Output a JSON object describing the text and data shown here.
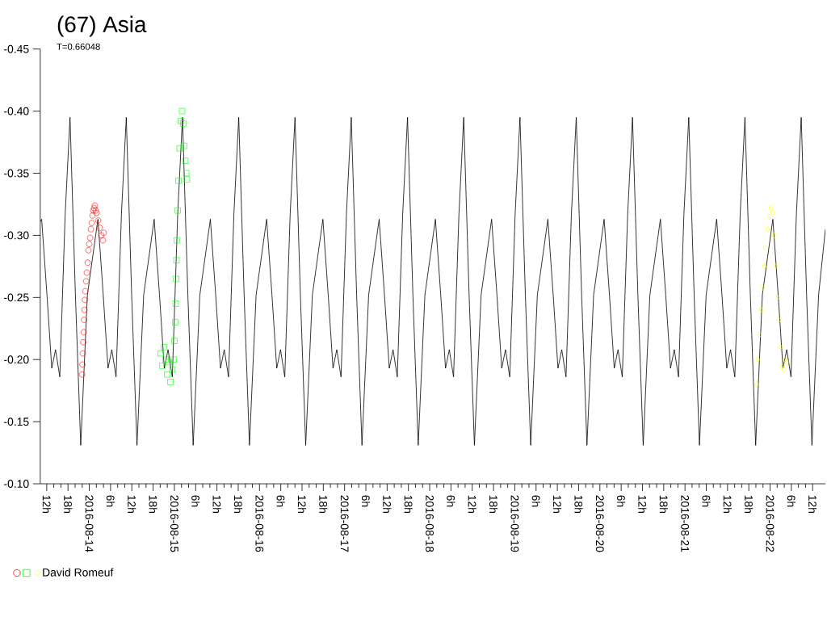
{
  "chart_data": {
    "type": "line",
    "title": "(67) Asia",
    "subtitle": "T=0.66048",
    "legend": "bottom left",
    "xlim": [
      "2016-08-13T10:10",
      "2016-08-22T15:36"
    ],
    "ylim": [
      -0.1,
      -0.45
    ],
    "yticks": [
      {
        "value": -0.45,
        "label": "-0.45"
      },
      {
        "value": -0.4,
        "label": "-0.40"
      },
      {
        "value": -0.35,
        "label": "-0.35"
      },
      {
        "value": -0.3,
        "label": "-0.30"
      },
      {
        "value": -0.25,
        "label": "-0.25"
      },
      {
        "value": -0.2,
        "label": "-0.20"
      },
      {
        "value": -0.15,
        "label": "-0.15"
      },
      {
        "value": -0.1,
        "label": "-0.10"
      }
    ],
    "xticks": [
      {
        "value": "2016-08-13T12:00",
        "label": "12h"
      },
      {
        "value": "2016-08-13T18:00",
        "label": "18h"
      },
      {
        "value": "2016-08-14T00:00",
        "label": "2016-08-14"
      },
      {
        "value": "2016-08-14T06:00",
        "label": "6h"
      },
      {
        "value": "2016-08-14T12:00",
        "label": "12h"
      },
      {
        "value": "2016-08-14T18:00",
        "label": "18h"
      },
      {
        "value": "2016-08-15T00:00",
        "label": "2016-08-15"
      },
      {
        "value": "2016-08-15T06:00",
        "label": "6h"
      },
      {
        "value": "2016-08-15T12:00",
        "label": "12h"
      },
      {
        "value": "2016-08-15T18:00",
        "label": "18h"
      },
      {
        "value": "2016-08-16T00:00",
        "label": "2016-08-16"
      },
      {
        "value": "2016-08-16T06:00",
        "label": "6h"
      },
      {
        "value": "2016-08-16T12:00",
        "label": "12h"
      },
      {
        "value": "2016-08-16T18:00",
        "label": "18h"
      },
      {
        "value": "2016-08-17T00:00",
        "label": "2016-08-17"
      },
      {
        "value": "2016-08-17T06:00",
        "label": "6h"
      },
      {
        "value": "2016-08-17T12:00",
        "label": "12h"
      },
      {
        "value": "2016-08-17T18:00",
        "label": "18h"
      },
      {
        "value": "2016-08-18T00:00",
        "label": "2016-08-18"
      },
      {
        "value": "2016-08-18T06:00",
        "label": "6h"
      },
      {
        "value": "2016-08-18T12:00",
        "label": "12h"
      },
      {
        "value": "2016-08-18T18:00",
        "label": "18h"
      },
      {
        "value": "2016-08-19T00:00",
        "label": "2016-08-19"
      },
      {
        "value": "2016-08-19T06:00",
        "label": "6h"
      },
      {
        "value": "2016-08-19T12:00",
        "label": "12h"
      },
      {
        "value": "2016-08-19T18:00",
        "label": "18h"
      },
      {
        "value": "2016-08-20T00:00",
        "label": "2016-08-20"
      },
      {
        "value": "2016-08-20T06:00",
        "label": "6h"
      },
      {
        "value": "2016-08-20T12:00",
        "label": "12h"
      },
      {
        "value": "2016-08-20T18:00",
        "label": "18h"
      },
      {
        "value": "2016-08-21T00:00",
        "label": "2016-08-21"
      },
      {
        "value": "2016-08-21T06:00",
        "label": "6h"
      },
      {
        "value": "2016-08-21T12:00",
        "label": "12h"
      },
      {
        "value": "2016-08-21T18:00",
        "label": "18h"
      },
      {
        "value": "2016-08-22T00:00",
        "label": "2016-08-22"
      },
      {
        "value": "2016-08-22T06:00",
        "label": "6h"
      },
      {
        "value": "2016-08-22T12:00",
        "label": "12h"
      }
    ],
    "series": [
      {
        "type": "scatter",
        "marker": "circle",
        "color": "#ff0000",
        "x": [
          "2016-08-13T21:58",
          "2016-08-13T22:04",
          "2016-08-13T22:11",
          "2016-08-13T22:18",
          "2016-08-13T22:25",
          "2016-08-13T22:32",
          "2016-08-13T22:38",
          "2016-08-13T22:45",
          "2016-08-13T22:52",
          "2016-08-13T23:06",
          "2016-08-13T23:19",
          "2016-08-13T23:33",
          "2016-08-13T23:46",
          "2016-08-14T00:00",
          "2016-08-14T00:14",
          "2016-08-14T00:27",
          "2016-08-14T00:41",
          "2016-08-14T00:54",
          "2016-08-14T01:08",
          "2016-08-14T01:22",
          "2016-08-14T01:35",
          "2016-08-14T01:49",
          "2016-08-14T02:02",
          "2016-08-14T02:30",
          "2016-08-14T02:57",
          "2016-08-14T03:24",
          "2016-08-14T03:51",
          "2016-08-14T04:05"
        ],
        "values": [
          -0.188,
          -0.196,
          -0.205,
          -0.214,
          -0.222,
          -0.232,
          -0.24,
          -0.248,
          -0.255,
          -0.263,
          -0.27,
          -0.278,
          -0.288,
          -0.293,
          -0.298,
          -0.305,
          -0.31,
          -0.316,
          -0.32,
          -0.322,
          -0.324,
          -0.32,
          -0.318,
          -0.312,
          -0.306,
          -0.3,
          -0.296,
          -0.302
        ]
      },
      {
        "type": "scatter",
        "marker": "square",
        "color": "#00ff00",
        "x": [
          "2016-08-14T20:10",
          "2016-08-14T20:37",
          "2016-08-14T21:05",
          "2016-08-14T21:32",
          "2016-08-14T21:59",
          "2016-08-14T22:26",
          "2016-08-14T22:53",
          "2016-08-14T23:21",
          "2016-08-14T23:48",
          "2016-08-15T00:01",
          "2016-08-15T00:15",
          "2016-08-15T00:22",
          "2016-08-15T00:29",
          "2016-08-15T00:36",
          "2016-08-15T00:42",
          "2016-08-15T00:56",
          "2016-08-15T01:09",
          "2016-08-15T01:30",
          "2016-08-15T01:50",
          "2016-08-15T02:11",
          "2016-08-15T02:31",
          "2016-08-15T02:45",
          "2016-08-15T03:05",
          "2016-08-15T03:21",
          "2016-08-15T03:32"
        ],
        "values": [
          -0.205,
          -0.195,
          -0.21,
          -0.2,
          -0.188,
          -0.198,
          -0.182,
          -0.192,
          -0.2,
          -0.215,
          -0.23,
          -0.245,
          -0.265,
          -0.28,
          -0.296,
          -0.32,
          -0.344,
          -0.37,
          -0.392,
          -0.4,
          -0.39,
          -0.372,
          -0.36,
          -0.35,
          -0.345
        ]
      },
      {
        "type": "scatter",
        "name": "David Romeuf",
        "marker": "diamond",
        "color": "#ffff00",
        "x": [
          "2016-08-21T20:13",
          "2016-08-21T20:34",
          "2016-08-21T21:01",
          "2016-08-21T21:28",
          "2016-08-21T21:55",
          "2016-08-21T22:22",
          "2016-08-21T22:49",
          "2016-08-21T23:17",
          "2016-08-21T23:44",
          "2016-08-22T00:11",
          "2016-08-22T00:38",
          "2016-08-22T01:05",
          "2016-08-22T01:33",
          "2016-08-22T02:00",
          "2016-08-22T02:27",
          "2016-08-22T02:54",
          "2016-08-22T03:21",
          "2016-08-22T03:49",
          "2016-08-22T04:16",
          "2016-08-22T04:43"
        ],
        "values": [
          -0.18,
          -0.2,
          -0.22,
          -0.24,
          -0.258,
          -0.275,
          -0.29,
          -0.305,
          -0.315,
          -0.322,
          -0.318,
          -0.3,
          -0.275,
          -0.25,
          -0.232,
          -0.21,
          -0.195,
          -0.192,
          -0.2,
          -0.198
        ]
      },
      {
        "marker": "none",
        "color": "#000000",
        "x": [
          "2016-08-13T10:10",
          "2016-08-13T10:34",
          "2016-08-13T12:04",
          "2016-08-13T13:25",
          "2016-08-13T14:29",
          "2016-08-13T15:41",
          "2016-08-13T17:12",
          "2016-08-13T18:34",
          "2016-08-13T20:05",
          "2016-08-13T21:35",
          "2016-08-13T23:28",
          "2016-08-14T02:26",
          "2016-08-14T03:56",
          "2016-08-14T05:17",
          "2016-08-14T06:21",
          "2016-08-14T07:33",
          "2016-08-14T09:04",
          "2016-08-14T10:26",
          "2016-08-14T11:57",
          "2016-08-14T13:27",
          "2016-08-14T15:20",
          "2016-08-14T18:18",
          "2016-08-14T19:48",
          "2016-08-14T21:09",
          "2016-08-14T22:13",
          "2016-08-14T23:25",
          "2016-08-15T00:56",
          "2016-08-15T02:17",
          "2016-08-15T03:48",
          "2016-08-15T05:18",
          "2016-08-15T07:11",
          "2016-08-15T10:09",
          "2016-08-15T11:39",
          "2016-08-15T13:00",
          "2016-08-15T14:04",
          "2016-08-15T15:16",
          "2016-08-15T16:47",
          "2016-08-15T18:09",
          "2016-08-15T19:40",
          "2016-08-15T21:10",
          "2016-08-15T23:03",
          "2016-08-16T02:01",
          "2016-08-16T03:31",
          "2016-08-16T04:52",
          "2016-08-16T05:56",
          "2016-08-16T07:08",
          "2016-08-16T08:39",
          "2016-08-16T10:01",
          "2016-08-16T11:32",
          "2016-08-16T13:02",
          "2016-08-16T14:55",
          "2016-08-16T17:53",
          "2016-08-16T19:23",
          "2016-08-16T20:44",
          "2016-08-16T21:48",
          "2016-08-16T23:00",
          "2016-08-17T00:31",
          "2016-08-17T01:53",
          "2016-08-17T03:24",
          "2016-08-17T04:54",
          "2016-08-17T06:47",
          "2016-08-17T09:45",
          "2016-08-17T11:15",
          "2016-08-17T12:36",
          "2016-08-17T13:40",
          "2016-08-17T14:52",
          "2016-08-17T16:23",
          "2016-08-17T17:45",
          "2016-08-17T19:16",
          "2016-08-17T20:46",
          "2016-08-17T22:39",
          "2016-08-18T01:37",
          "2016-08-18T03:07",
          "2016-08-18T04:28",
          "2016-08-18T05:32",
          "2016-08-18T06:44",
          "2016-08-18T08:15",
          "2016-08-18T09:36",
          "2016-08-18T11:07",
          "2016-08-18T12:37",
          "2016-08-18T14:30",
          "2016-08-18T17:28",
          "2016-08-18T18:58",
          "2016-08-18T20:19",
          "2016-08-18T21:23",
          "2016-08-18T22:35",
          "2016-08-19T00:06",
          "2016-08-19T01:28",
          "2016-08-19T02:59",
          "2016-08-19T04:29",
          "2016-08-19T06:22",
          "2016-08-19T09:20",
          "2016-08-19T10:50",
          "2016-08-19T12:11",
          "2016-08-19T13:15",
          "2016-08-19T14:27",
          "2016-08-19T15:58",
          "2016-08-19T17:20",
          "2016-08-19T18:51",
          "2016-08-19T20:21",
          "2016-08-19T22:14",
          "2016-08-20T01:12",
          "2016-08-20T02:42",
          "2016-08-20T04:03",
          "2016-08-20T05:07",
          "2016-08-20T06:19",
          "2016-08-20T07:50",
          "2016-08-20T09:12",
          "2016-08-20T10:43",
          "2016-08-20T12:13",
          "2016-08-20T14:06",
          "2016-08-20T17:04",
          "2016-08-20T18:34",
          "2016-08-20T19:55",
          "2016-08-20T20:59",
          "2016-08-20T22:11",
          "2016-08-20T23:42",
          "2016-08-21T01:04",
          "2016-08-21T02:35",
          "2016-08-21T04:05",
          "2016-08-21T05:58",
          "2016-08-21T08:56",
          "2016-08-21T10:26",
          "2016-08-21T11:47",
          "2016-08-21T12:51",
          "2016-08-21T14:03",
          "2016-08-21T15:34",
          "2016-08-21T16:55",
          "2016-08-21T18:26",
          "2016-08-21T19:56",
          "2016-08-21T21:49",
          "2016-08-22T00:47",
          "2016-08-22T02:17",
          "2016-08-22T03:38",
          "2016-08-22T04:42",
          "2016-08-22T05:54",
          "2016-08-22T07:25",
          "2016-08-22T08:47",
          "2016-08-22T10:18",
          "2016-08-22T11:48",
          "2016-08-22T13:41",
          "2016-08-22T15:36"
        ],
        "values": [
          -0.311,
          -0.313,
          -0.252,
          -0.193,
          -0.208,
          -0.186,
          -0.317,
          -0.395,
          -0.252,
          -0.131,
          -0.252,
          -0.313,
          -0.252,
          -0.193,
          -0.208,
          -0.186,
          -0.317,
          -0.395,
          -0.252,
          -0.131,
          -0.252,
          -0.313,
          -0.252,
          -0.193,
          -0.208,
          -0.186,
          -0.317,
          -0.395,
          -0.252,
          -0.131,
          -0.252,
          -0.313,
          -0.252,
          -0.193,
          -0.208,
          -0.186,
          -0.317,
          -0.395,
          -0.252,
          -0.131,
          -0.252,
          -0.313,
          -0.252,
          -0.193,
          -0.208,
          -0.186,
          -0.317,
          -0.395,
          -0.252,
          -0.131,
          -0.252,
          -0.313,
          -0.252,
          -0.193,
          -0.208,
          -0.186,
          -0.317,
          -0.395,
          -0.252,
          -0.131,
          -0.252,
          -0.313,
          -0.252,
          -0.193,
          -0.208,
          -0.186,
          -0.317,
          -0.395,
          -0.252,
          -0.131,
          -0.252,
          -0.313,
          -0.252,
          -0.193,
          -0.208,
          -0.186,
          -0.317,
          -0.395,
          -0.252,
          -0.131,
          -0.252,
          -0.313,
          -0.252,
          -0.193,
          -0.208,
          -0.186,
          -0.317,
          -0.395,
          -0.252,
          -0.131,
          -0.252,
          -0.313,
          -0.252,
          -0.193,
          -0.208,
          -0.186,
          -0.317,
          -0.395,
          -0.252,
          -0.131,
          -0.252,
          -0.313,
          -0.252,
          -0.193,
          -0.208,
          -0.186,
          -0.317,
          -0.395,
          -0.252,
          -0.131,
          -0.252,
          -0.313,
          -0.252,
          -0.193,
          -0.208,
          -0.186,
          -0.317,
          -0.395,
          -0.252,
          -0.131,
          -0.252,
          -0.313,
          -0.252,
          -0.193,
          -0.208,
          -0.186,
          -0.317,
          -0.395,
          -0.252,
          -0.131,
          -0.252,
          -0.313,
          -0.252,
          -0.193,
          -0.208,
          -0.186,
          -0.317,
          -0.395,
          -0.252,
          -0.131,
          -0.252,
          -0.305
        ]
      }
    ]
  }
}
